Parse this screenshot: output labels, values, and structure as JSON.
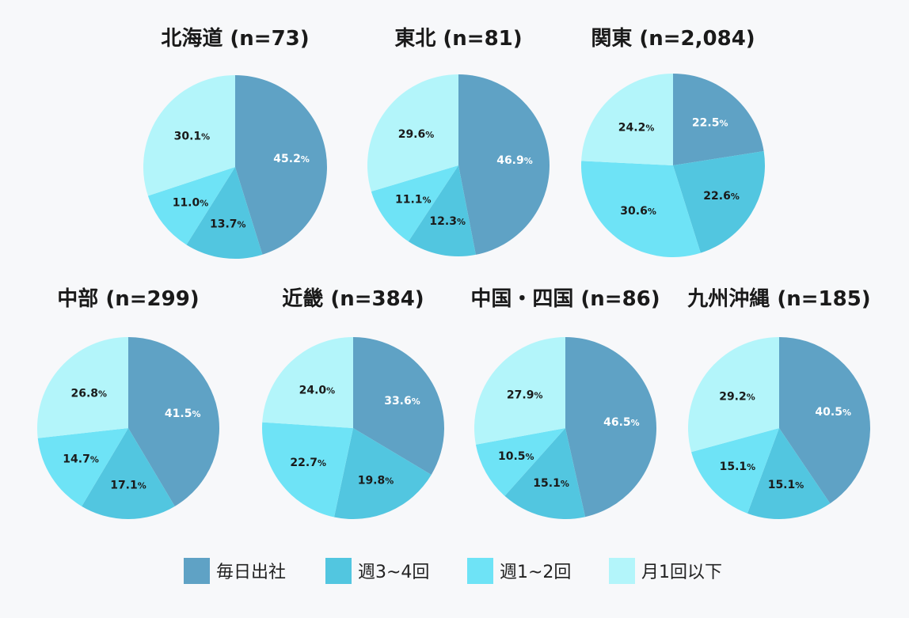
{
  "chart_data": [
    {
      "type": "pie",
      "title": "北海道 (n=73)",
      "series": [
        {
          "values": [
            45.2,
            13.7,
            11.0,
            30.1
          ]
        }
      ],
      "labels": [
        "45.2",
        "13.7",
        "11.0",
        "30.1"
      ]
    },
    {
      "type": "pie",
      "title": "東北 (n=81)",
      "series": [
        {
          "values": [
            46.9,
            12.3,
            11.1,
            29.6
          ]
        }
      ],
      "labels": [
        "46.9",
        "12.3",
        "11.1",
        "29.6"
      ]
    },
    {
      "type": "pie",
      "title": "関東 (n=2,084)",
      "series": [
        {
          "values": [
            22.5,
            22.6,
            30.6,
            24.2
          ]
        }
      ],
      "labels": [
        "22.5",
        "22.6",
        "30.6",
        "24.2"
      ]
    },
    {
      "type": "pie",
      "title": "中部 (n=299)",
      "series": [
        {
          "values": [
            41.5,
            17.1,
            14.7,
            26.8
          ]
        }
      ],
      "labels": [
        "41.5",
        "17.1",
        "14.7",
        "26.8"
      ]
    },
    {
      "type": "pie",
      "title": "近畿 (n=384)",
      "series": [
        {
          "values": [
            33.6,
            19.8,
            22.7,
            24.0
          ]
        }
      ],
      "labels": [
        "33.6",
        "19.8",
        "22.7",
        "24.0"
      ]
    },
    {
      "type": "pie",
      "title": "中国・四国 (n=86)",
      "series": [
        {
          "values": [
            46.5,
            15.1,
            10.5,
            27.9
          ]
        }
      ],
      "labels": [
        "46.5",
        "15.1",
        "10.5",
        "27.9"
      ]
    },
    {
      "type": "pie",
      "title": "九州沖縄 (n=185)",
      "series": [
        {
          "values": [
            40.5,
            15.1,
            15.1,
            29.2
          ]
        }
      ],
      "labels": [
        "40.5",
        "15.1",
        "15.1",
        "29.2"
      ]
    }
  ],
  "legend": {
    "placement": "bottom",
    "items": [
      "毎日出社",
      "週3~4回",
      "週1~2回",
      "月1回以下"
    ]
  },
  "unit": "%",
  "colors": [
    "#5fa2c5",
    "#52c6e0",
    "#6ee3f6",
    "#b3f5fa"
  ],
  "label_colors": [
    "#ffffff",
    "#1a1a1a",
    "#1a1a1a",
    "#1a1a1a"
  ]
}
